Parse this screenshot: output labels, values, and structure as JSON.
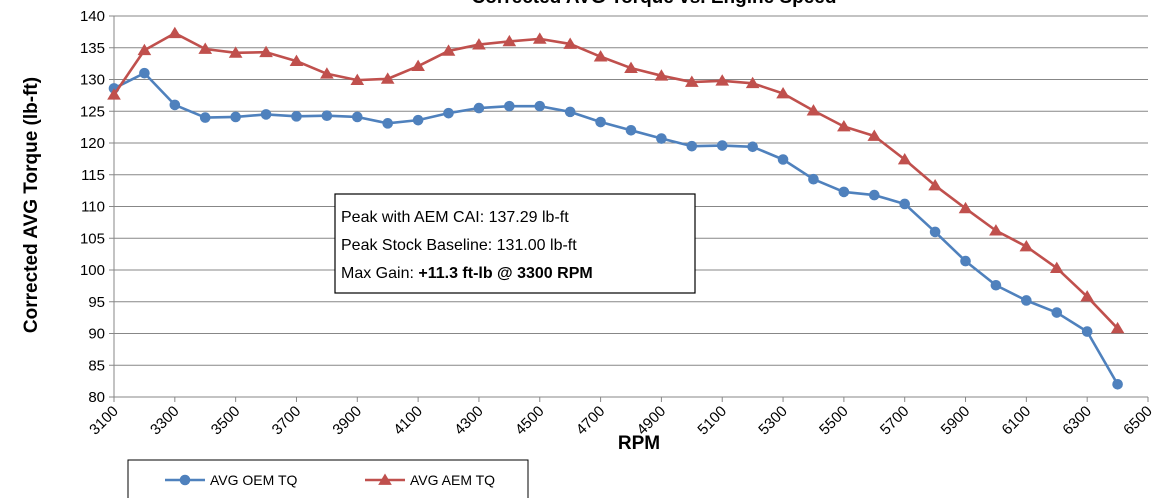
{
  "chart_data": {
    "type": "line",
    "title": "Corrected AVG Torque vs. Engine Speed",
    "xlabel": "RPM",
    "ylabel": "Corrected AVG Torque (lb-ft)",
    "xlim": [
      3100,
      6500
    ],
    "ylim": [
      80,
      140
    ],
    "x_ticks": [
      3100,
      3300,
      3500,
      3700,
      3900,
      4100,
      4300,
      4500,
      4700,
      4900,
      5100,
      5300,
      5500,
      5700,
      5900,
      6100,
      6300,
      6500
    ],
    "y_ticks": [
      80,
      85,
      90,
      95,
      100,
      105,
      110,
      115,
      120,
      125,
      130,
      135,
      140
    ],
    "grid": "horizontal",
    "legend_position": "bottom-left",
    "x": [
      3100,
      3200,
      3300,
      3400,
      3500,
      3600,
      3700,
      3800,
      3900,
      4000,
      4100,
      4200,
      4300,
      4400,
      4500,
      4600,
      4700,
      4800,
      4900,
      5000,
      5100,
      5200,
      5300,
      5400,
      5500,
      5600,
      5700,
      5800,
      5900,
      6000,
      6100,
      6200,
      6300,
      6400
    ],
    "series": [
      {
        "name": "AVG OEM TQ",
        "color": "#4f81bd",
        "marker": "circle",
        "values": [
          128.6,
          131.0,
          126.0,
          124.0,
          124.1,
          124.5,
          124.2,
          124.3,
          124.1,
          123.1,
          123.6,
          124.7,
          125.5,
          125.8,
          125.8,
          124.9,
          123.3,
          122.0,
          120.7,
          119.5,
          119.6,
          119.4,
          117.4,
          114.3,
          112.3,
          111.8,
          110.4,
          106.0,
          101.4,
          97.6,
          95.2,
          93.3,
          90.3,
          82.0
        ]
      },
      {
        "name": "AVG AEM TQ",
        "color": "#c0504d",
        "marker": "triangle",
        "values": [
          127.6,
          134.6,
          137.29,
          134.8,
          134.2,
          134.3,
          132.9,
          130.9,
          129.9,
          130.1,
          132.1,
          134.5,
          135.5,
          136.0,
          136.4,
          135.6,
          133.6,
          131.8,
          130.6,
          129.6,
          129.8,
          129.4,
          127.8,
          125.1,
          122.6,
          121.1,
          117.4,
          113.3,
          109.7,
          106.2,
          103.7,
          100.3,
          95.8,
          90.8
        ]
      }
    ],
    "annotation": {
      "line1": "Peak with AEM CAI:  137.29 lb-ft",
      "line2": "Peak Stock Baseline:  131.00 lb-ft",
      "line3_prefix": "Max Gain: ",
      "line3_bold": "+11.3 ft-lb @ 3300 RPM"
    }
  }
}
